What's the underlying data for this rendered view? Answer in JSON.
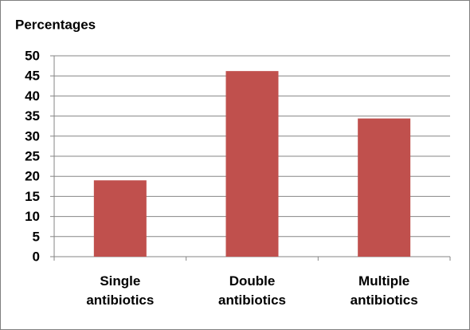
{
  "chart_data": {
    "type": "bar",
    "title": "Percentages",
    "categories": [
      "Single antibiotics",
      "Double antibiotics",
      "Multiple antibiotics"
    ],
    "values": [
      19,
      46.2,
      34.4
    ],
    "color": "#c0504d",
    "ylim": [
      0,
      50
    ],
    "yticks": [
      0,
      5,
      10,
      15,
      20,
      25,
      30,
      35,
      40,
      45,
      50
    ],
    "grid": true
  }
}
